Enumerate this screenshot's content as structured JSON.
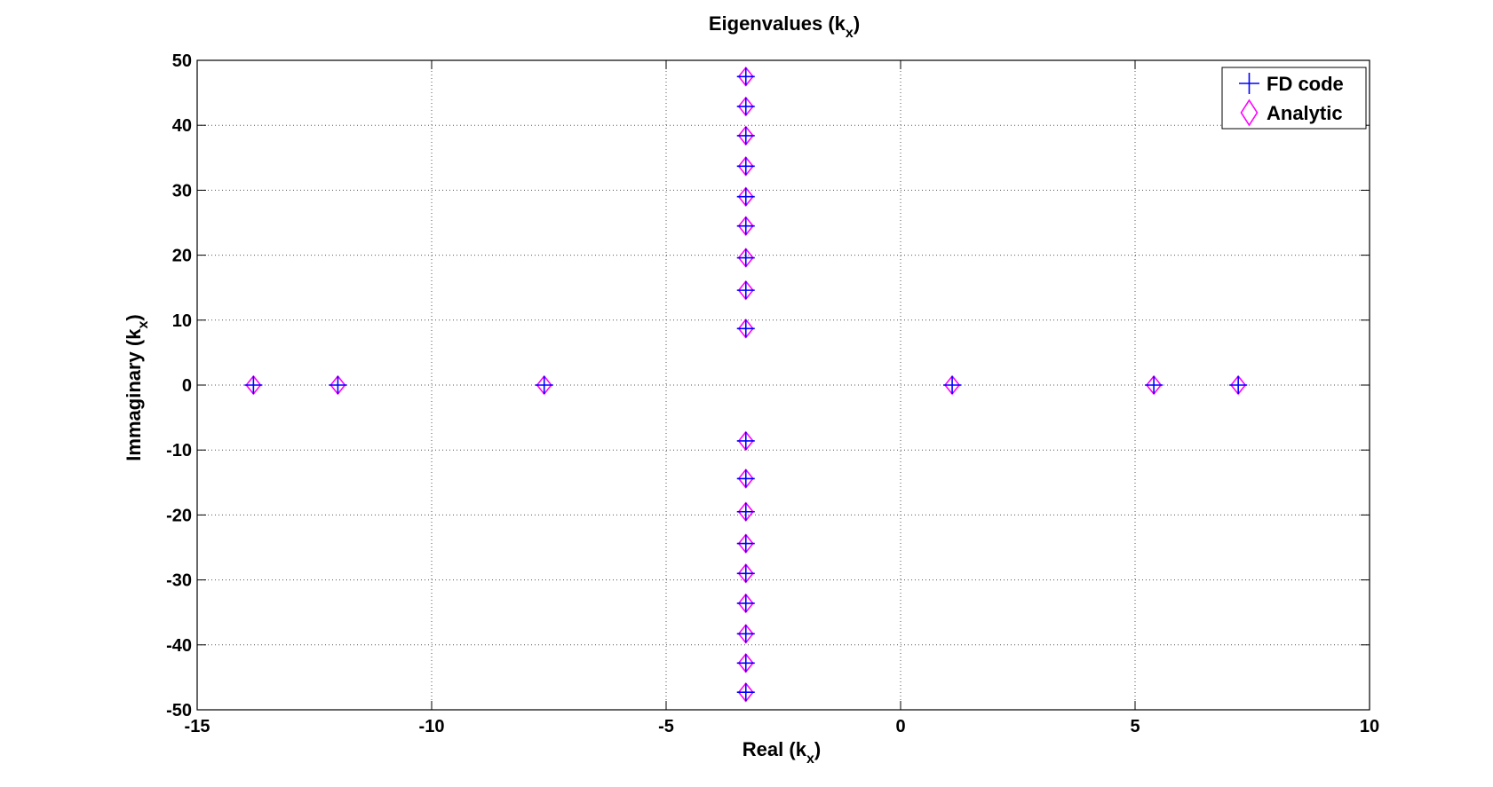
{
  "chart_data": {
    "type": "scatter",
    "title": "Eigenvalues (k",
    "title_sub": "x",
    "title_close": ")",
    "xlabel": "Real (k",
    "xlabel_sub": "x",
    "xlabel_close": ")",
    "ylabel": "Immaginary (k",
    "ylabel_sub": "x",
    "ylabel_close": ")",
    "xlim": [
      -15,
      10
    ],
    "ylim": [
      -50,
      50
    ],
    "xticks": [
      -15,
      -10,
      -5,
      0,
      5,
      10
    ],
    "yticks": [
      50,
      40,
      30,
      20,
      10,
      0,
      -10,
      -20,
      -30,
      -40,
      -50
    ],
    "xtick_labels": [
      "-15",
      "-10",
      "-5",
      "0",
      "5",
      "10"
    ],
    "ytick_labels": [
      "50",
      "40",
      "30",
      "20",
      "10",
      "0",
      "-10",
      "-20",
      "-30",
      "-40",
      "-50"
    ],
    "grid": true,
    "legend_position": "top-right",
    "series": [
      {
        "name": "FD code",
        "marker": "plus",
        "color": "#0000ff",
        "x": [
          -13.8,
          -12.0,
          -7.6,
          1.1,
          5.4,
          7.2,
          -3.3,
          -3.3,
          -3.3,
          -3.3,
          -3.3,
          -3.3,
          -3.3,
          -3.3,
          -3.3,
          -3.3,
          -3.3,
          -3.3,
          -3.3,
          -3.3,
          -3.3,
          -3.3,
          -3.3,
          -3.3
        ],
        "y": [
          0,
          0,
          0,
          0,
          0,
          0,
          47.5,
          42.9,
          38.4,
          33.7,
          29.0,
          24.5,
          19.6,
          14.6,
          8.7,
          -8.6,
          -14.4,
          -19.5,
          -24.4,
          -29.0,
          -33.6,
          -38.3,
          -42.8,
          -47.3
        ]
      },
      {
        "name": "Analytic",
        "marker": "diamond",
        "color": "#ff00ff",
        "x": [
          -13.8,
          -12.0,
          -7.6,
          1.1,
          5.4,
          7.2,
          -3.3,
          -3.3,
          -3.3,
          -3.3,
          -3.3,
          -3.3,
          -3.3,
          -3.3,
          -3.3,
          -3.3,
          -3.3,
          -3.3,
          -3.3,
          -3.3,
          -3.3,
          -3.3,
          -3.3,
          -3.3
        ],
        "y": [
          0,
          0,
          0,
          0,
          0,
          0,
          47.5,
          42.9,
          38.4,
          33.7,
          29.0,
          24.5,
          19.6,
          14.6,
          8.7,
          -8.6,
          -14.4,
          -19.5,
          -24.4,
          -29.0,
          -33.6,
          -38.3,
          -42.8,
          -47.3
        ]
      }
    ]
  }
}
